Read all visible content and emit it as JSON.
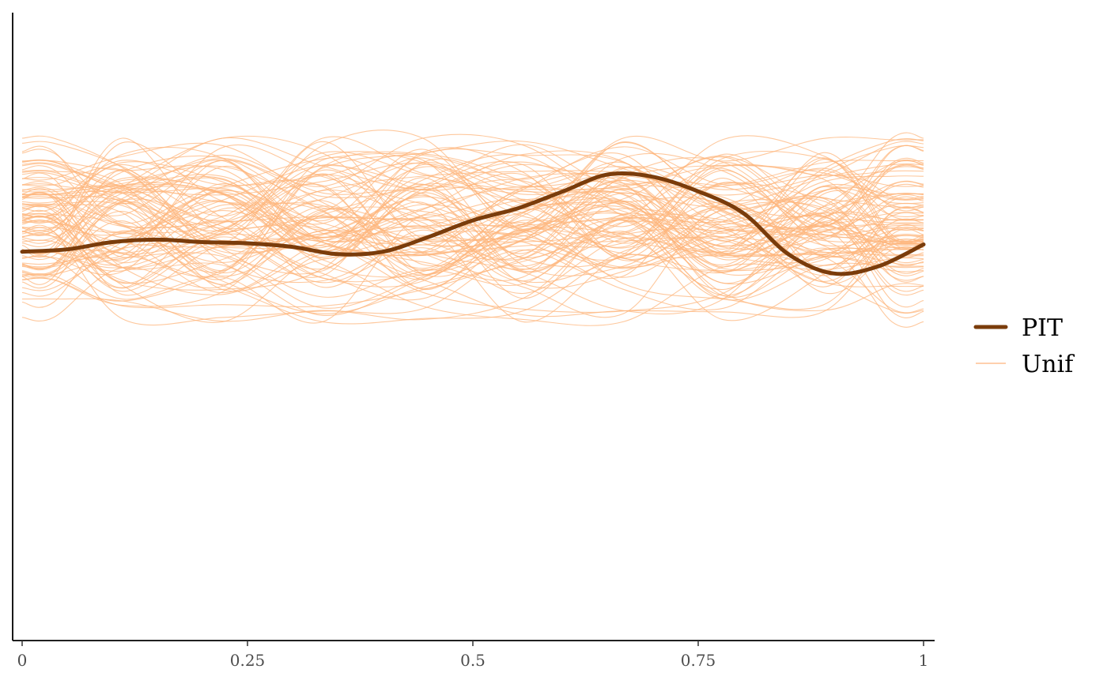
{
  "chart_data": {
    "type": "line",
    "title": "",
    "xlabel": "",
    "ylabel": "",
    "xlim": [
      0,
      1
    ],
    "ylim": [
      0,
      2.6
    ],
    "x_ticks": [
      {
        "value": 0,
        "label": "0"
      },
      {
        "value": 0.25,
        "label": "0.25"
      },
      {
        "value": 0.5,
        "label": "0.5"
      },
      {
        "value": 0.75,
        "label": "0.75"
      },
      {
        "value": 1,
        "label": "1"
      }
    ],
    "y_axis_labels_shown": false,
    "grid": false,
    "legend_position": "right",
    "legend": [
      {
        "label": "PIT",
        "color": "#7a3c0b",
        "style": "thick"
      },
      {
        "label": "Unif",
        "color": "#fdb57c",
        "style": "thin"
      }
    ],
    "series": [
      {
        "name": "PIT",
        "color": "#7a3c0b",
        "x": [
          0.0,
          0.05,
          0.1,
          0.15,
          0.2,
          0.25,
          0.3,
          0.35,
          0.4,
          0.45,
          0.5,
          0.55,
          0.6,
          0.65,
          0.7,
          0.75,
          0.8,
          0.85,
          0.9,
          0.95,
          1.0
        ],
        "y": [
          1.61,
          1.62,
          1.65,
          1.66,
          1.65,
          1.645,
          1.63,
          1.6,
          1.61,
          1.67,
          1.74,
          1.79,
          1.86,
          1.93,
          1.92,
          1.86,
          1.77,
          1.6,
          1.52,
          1.55,
          1.64
        ]
      }
    ],
    "reference_band": {
      "name": "Unif",
      "color": "#fdb57c",
      "count": 100,
      "x_range": [
        0,
        1
      ],
      "y_range": [
        1.32,
        2.08
      ]
    }
  }
}
